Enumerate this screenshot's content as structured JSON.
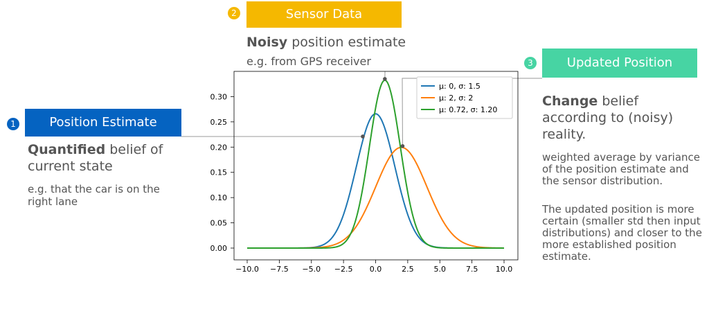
{
  "steps": [
    {
      "number": "1",
      "banner": "Position Estimate",
      "heading_bold": "Quantified",
      "heading_rest": "belief of current state",
      "sub": "e.g. that the car is on the right lane"
    },
    {
      "number": "2",
      "banner": "Sensor Data",
      "heading_bold": "Noisy",
      "heading_rest": "position estimate",
      "sub": "e.g. from GPS receiver"
    },
    {
      "number": "3",
      "banner": "Updated Position",
      "heading_bold": "Change",
      "heading_rest": "belief according to (noisy) reality.",
      "para1": "weighted average by variance of the position estimate and the sensor distribution.",
      "para2": "The updated position is more certain (smaller std then input distributions) and closer to the more established position estimate."
    }
  ],
  "colors": {
    "step1": "#0563c1",
    "step2": "#f5b800",
    "step3": "#47d4a3",
    "blue_series": "#1f77b4",
    "orange_series": "#ff7f0e",
    "green_series": "#2ca02c"
  },
  "chart_data": {
    "type": "line",
    "xlim": [
      -10,
      10
    ],
    "ylim": [
      0,
      0.35
    ],
    "x_ticks": [
      "−10.0",
      "−7.5",
      "−5.0",
      "−2.5",
      "0.0",
      "2.5",
      "5.0",
      "7.5",
      "10.0"
    ],
    "y_ticks": [
      "0.00",
      "0.05",
      "0.10",
      "0.15",
      "0.20",
      "0.25",
      "0.30"
    ],
    "x_tick_values": [
      -10,
      -7.5,
      -5,
      -2.5,
      0,
      2.5,
      5,
      7.5,
      10
    ],
    "y_tick_values": [
      0,
      0.05,
      0.1,
      0.15,
      0.2,
      0.25,
      0.3
    ],
    "legend_position": "top-right",
    "series": [
      {
        "name": "μ: 0, σ: 1.5",
        "mu": 0,
        "sigma": 1.5,
        "color": "#1f77b4"
      },
      {
        "name": "μ: 2, σ: 2",
        "mu": 2,
        "sigma": 2,
        "color": "#ff7f0e"
      },
      {
        "name": "μ: 0.72, σ: 1.20",
        "mu": 0.72,
        "sigma": 1.2,
        "color": "#2ca02c"
      }
    ],
    "markers": [
      {
        "x": -1.0,
        "y": 0.221
      },
      {
        "x": 0.72,
        "y": 0.335
      },
      {
        "x": 2.1,
        "y": 0.202
      }
    ]
  }
}
